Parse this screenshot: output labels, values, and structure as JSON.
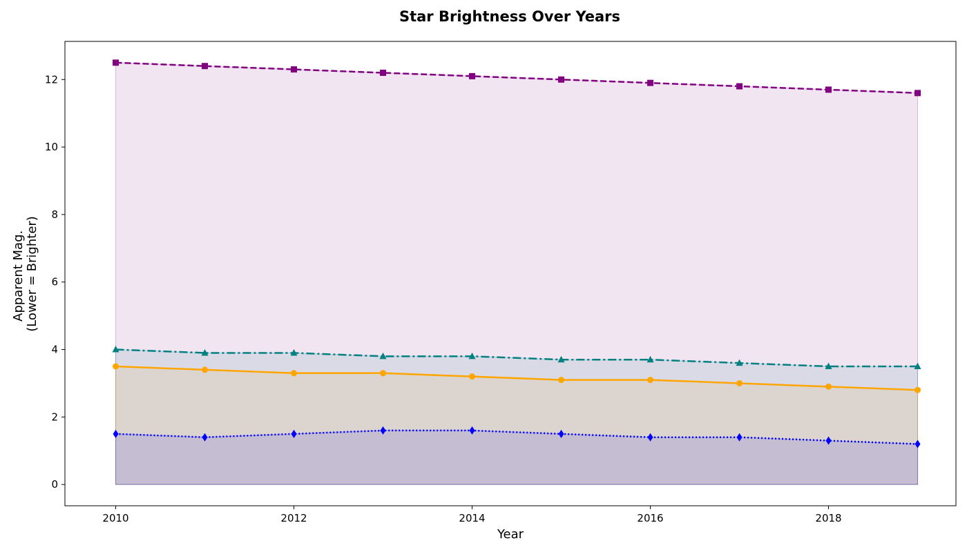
{
  "chart_data": {
    "type": "area",
    "title": "Star Brightness Over Years",
    "xlabel": "Year",
    "ylabel_lines": [
      "Apparent Mag.",
      "(Lower = Brighter)"
    ],
    "xlim": [
      2009.43,
      2019.43
    ],
    "ylim": [
      -0.63,
      13.13
    ],
    "xticks": [
      2010,
      2012,
      2014,
      2016,
      2018
    ],
    "yticks": [
      0,
      2,
      4,
      6,
      8,
      10,
      12
    ],
    "x": [
      2010,
      2011,
      2012,
      2013,
      2014,
      2015,
      2016,
      2017,
      2018,
      2019
    ],
    "grid": false,
    "legend": "none",
    "series": [
      {
        "values": [
          12.5,
          12.4,
          12.3,
          12.2,
          12.1,
          12.0,
          11.9,
          11.8,
          11.7,
          11.6
        ],
        "color": "#800080",
        "fill": "#800080",
        "marker": "square",
        "linestyle": "dashed"
      },
      {
        "values": [
          4.0,
          3.9,
          3.9,
          3.8,
          3.8,
          3.7,
          3.7,
          3.6,
          3.5,
          3.5
        ],
        "color": "#008080",
        "fill": "#008080",
        "marker": "triangle",
        "linestyle": "dashdot"
      },
      {
        "values": [
          3.5,
          3.4,
          3.3,
          3.3,
          3.2,
          3.1,
          3.1,
          3.0,
          2.9,
          2.8
        ],
        "color": "#FFA500",
        "fill": "#FFA500",
        "marker": "circle",
        "linestyle": "solid"
      },
      {
        "values": [
          1.5,
          1.4,
          1.5,
          1.6,
          1.6,
          1.5,
          1.4,
          1.4,
          1.3,
          1.2
        ],
        "color": "#0000FF",
        "fill": "#0000FF",
        "marker": "diamond",
        "linestyle": "dotted"
      }
    ]
  }
}
